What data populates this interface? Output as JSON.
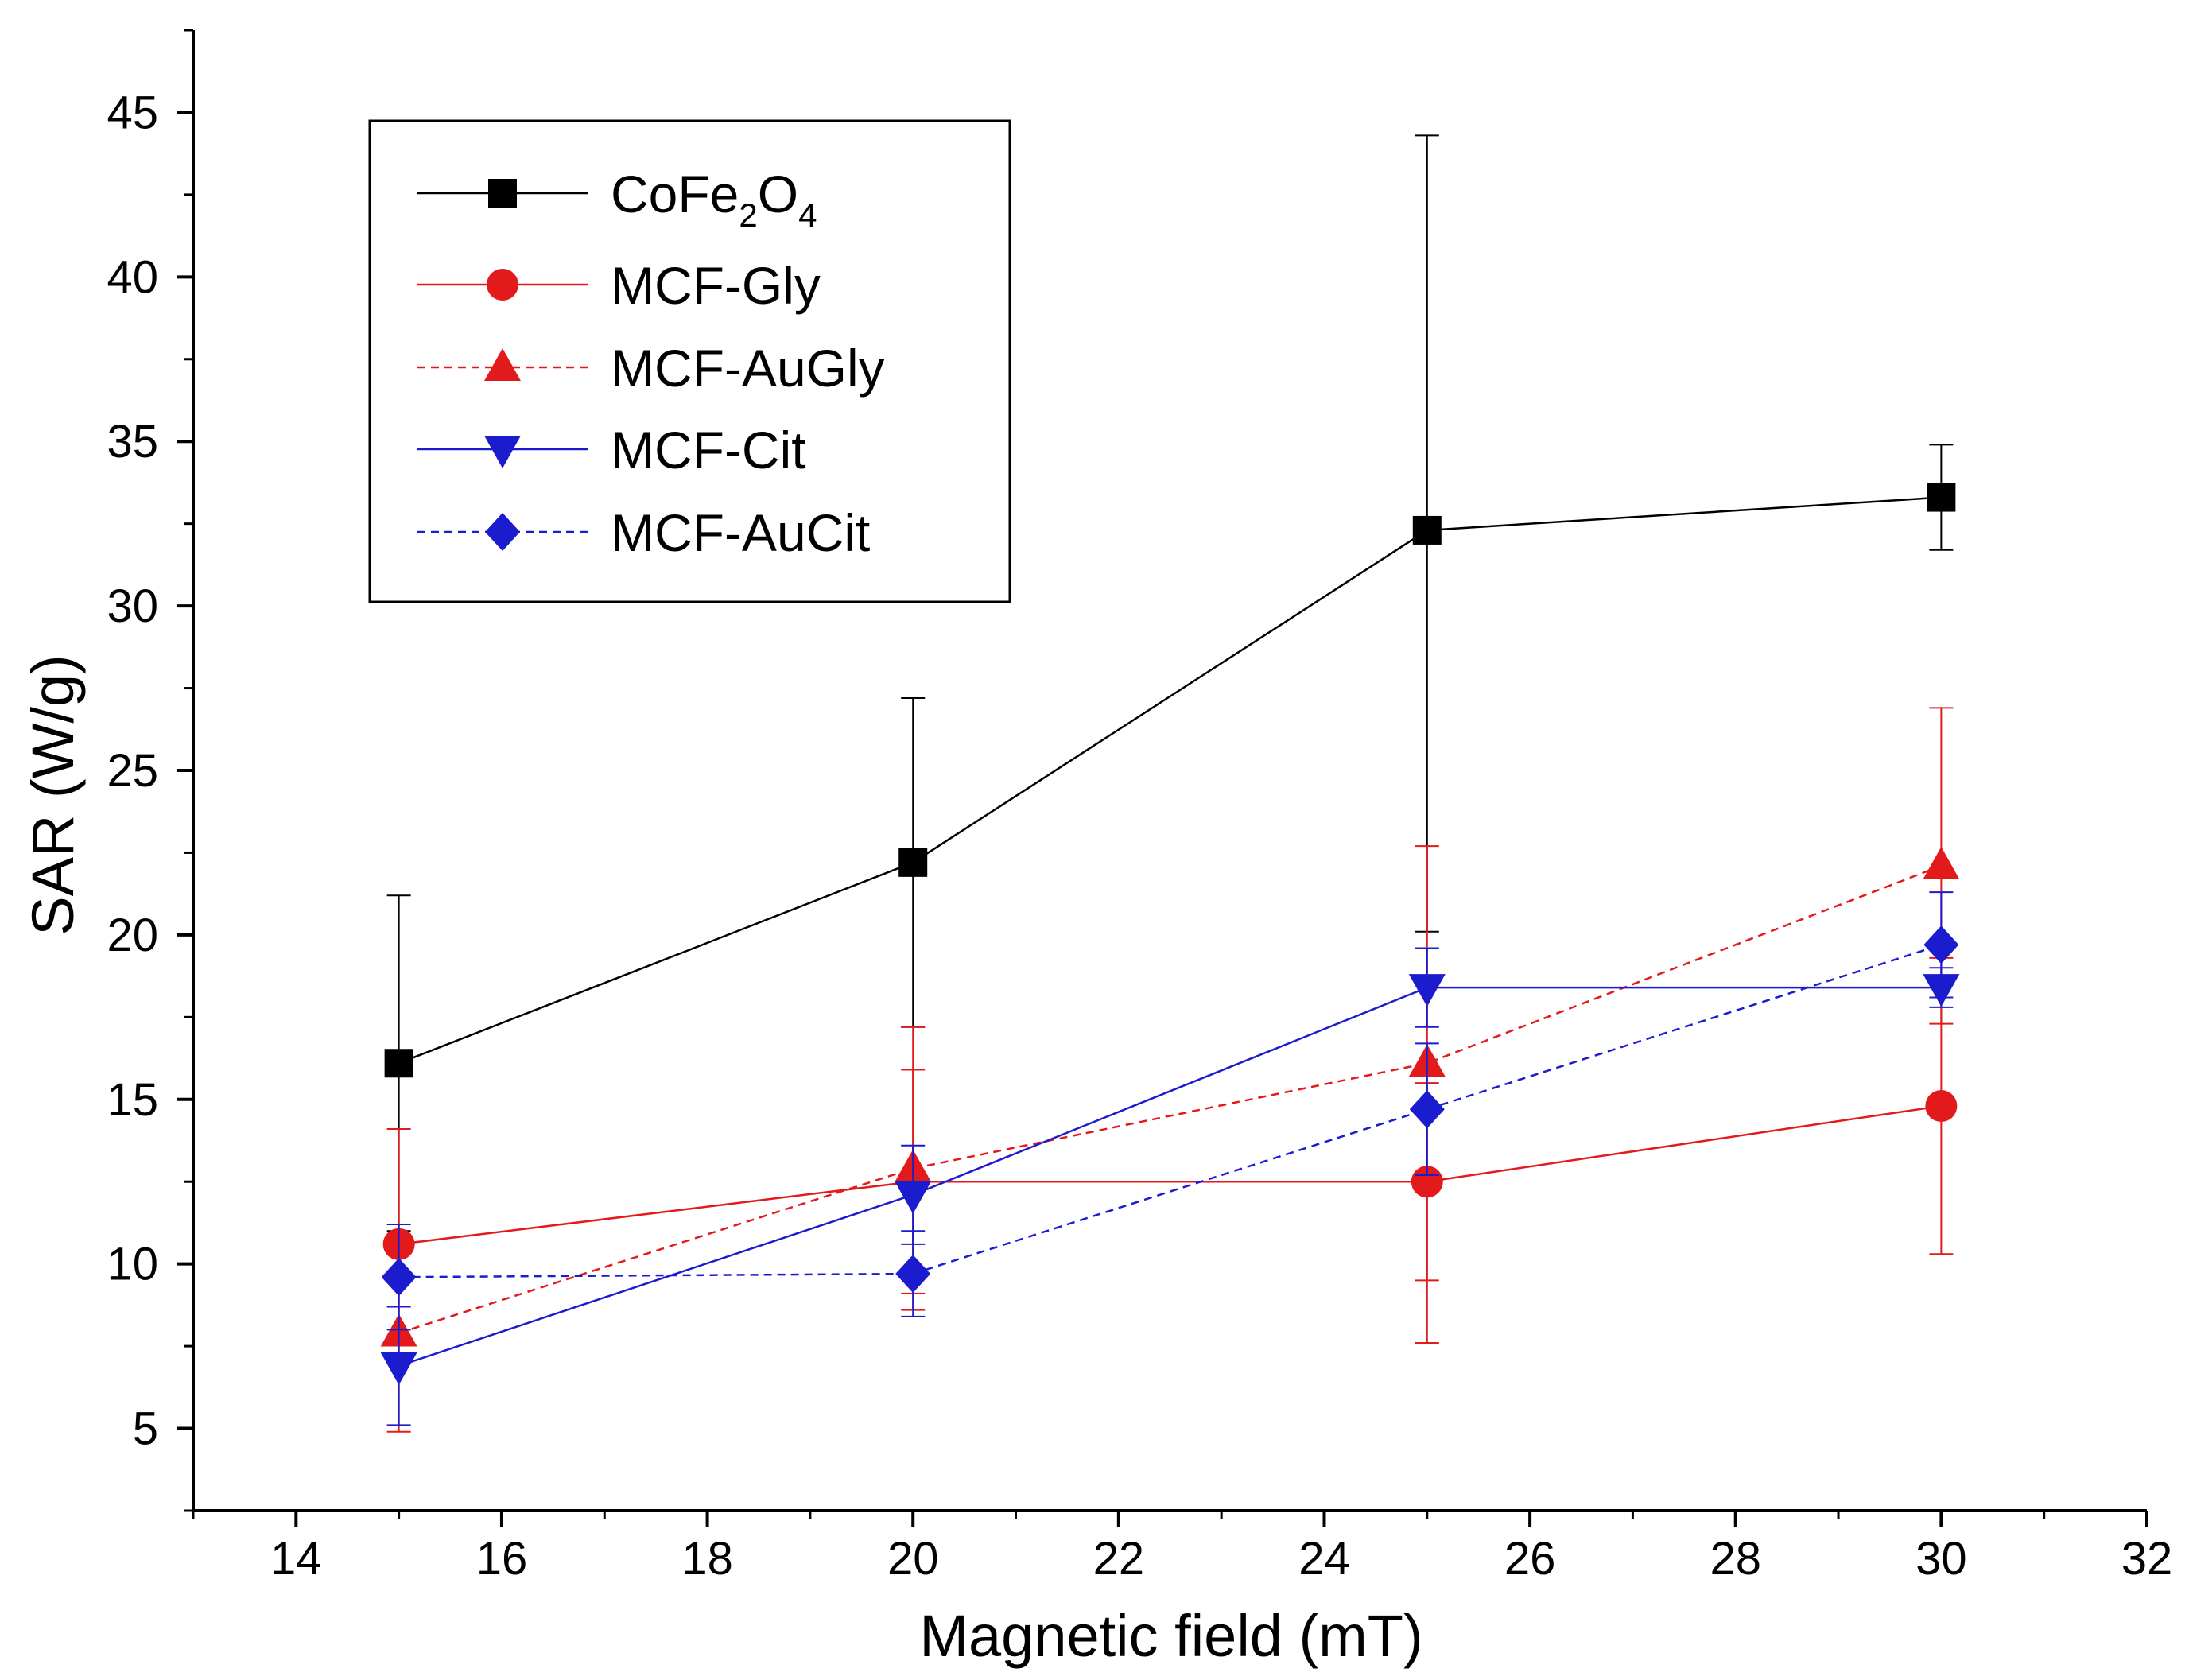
{
  "chart_data": {
    "type": "line",
    "title": "",
    "xlabel": "Magnetic field (mT)",
    "ylabel": "SAR (W/g)",
    "xlim": [
      13,
      32
    ],
    "ylim": [
      2.5,
      47.5
    ],
    "xticks": [
      14,
      16,
      18,
      20,
      22,
      24,
      26,
      28,
      30,
      32
    ],
    "yticks": [
      5,
      10,
      15,
      20,
      25,
      30,
      35,
      40,
      45
    ],
    "xtick_labels": [
      "14",
      "16",
      "18",
      "20",
      "22",
      "24",
      "26",
      "28",
      "30",
      "32"
    ],
    "ytick_labels": [
      "5",
      "10",
      "15",
      "20",
      "25",
      "30",
      "35",
      "40",
      "45"
    ],
    "legend_position": "top-left",
    "grid": false,
    "x": [
      15,
      20,
      25,
      30
    ],
    "series": [
      {
        "name": "CoFe2O4",
        "label": {
          "base": "CoFe",
          "sub1": "2",
          "mid": "O",
          "sub2": "4"
        },
        "color": "#000000",
        "marker": "square",
        "line": "solid",
        "values": [
          16.1,
          22.2,
          32.3,
          33.3
        ],
        "err_up": [
          5.1,
          5.0,
          12.0,
          1.6
        ],
        "err_down": [
          5.1,
          5.0,
          12.2,
          1.6
        ]
      },
      {
        "name": "MCF-Gly",
        "color": "#e31a1c",
        "marker": "circle",
        "line": "solid",
        "values": [
          10.6,
          12.5,
          12.5,
          14.8
        ],
        "err_up": [
          3.5,
          3.4,
          3.0,
          4.5
        ],
        "err_down": [
          3.5,
          3.4,
          3.0,
          4.5
        ]
      },
      {
        "name": "MCF-AuGly",
        "color": "#e31a1c",
        "marker": "triangle-up",
        "line": "dashed",
        "values": [
          7.9,
          12.9,
          16.1,
          22.1
        ],
        "err_up": [
          3.0,
          4.3,
          6.6,
          4.8
        ],
        "err_down": [
          3.0,
          4.3,
          8.5,
          4.8
        ]
      },
      {
        "name": "MCF-Cit",
        "color": "#1c1ccf",
        "marker": "triangle-down",
        "line": "solid",
        "values": [
          6.9,
          12.1,
          18.4,
          18.4
        ],
        "err_up": [
          1.8,
          1.5,
          1.2,
          0.6
        ],
        "err_down": [
          1.8,
          1.5,
          1.2,
          0.6
        ]
      },
      {
        "name": "MCF-AuCit",
        "color": "#1c1ccf",
        "marker": "diamond",
        "line": "dashed",
        "values": [
          9.6,
          9.7,
          14.7,
          19.7
        ],
        "err_up": [
          1.6,
          1.3,
          2.0,
          1.6
        ],
        "err_down": [
          1.6,
          1.3,
          2.0,
          1.6
        ]
      }
    ]
  }
}
